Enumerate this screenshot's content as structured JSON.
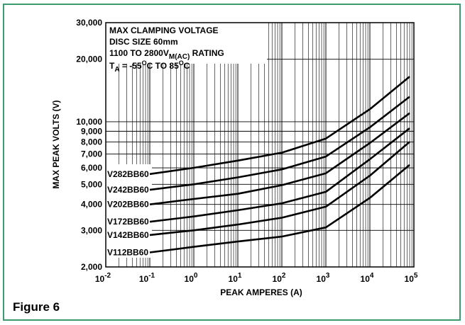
{
  "figure_caption": "Figure 6",
  "colors": {
    "border": "#3f9b6e",
    "line": "#000000",
    "grid": "#000000"
  },
  "chart_data": {
    "type": "line",
    "xscale": "log",
    "yscale": "log",
    "xlabel": "PEAK AMPERES (A)",
    "ylabel": "MAX PEAK VOLTS (V)",
    "xlim": [
      0.01,
      100000
    ],
    "ylim": [
      2000,
      30000
    ],
    "grid": true,
    "x_ticks": [
      {
        "value": 0.01,
        "base": "10",
        "exp": "-2"
      },
      {
        "value": 0.1,
        "base": "10",
        "exp": "-1"
      },
      {
        "value": 1,
        "base": "10",
        "exp": "0"
      },
      {
        "value": 10,
        "base": "10",
        "exp": "1"
      },
      {
        "value": 100,
        "base": "10",
        "exp": "2"
      },
      {
        "value": 1000,
        "base": "10",
        "exp": "3"
      },
      {
        "value": 10000,
        "base": "10",
        "exp": "4"
      },
      {
        "value": 100000,
        "base": "10",
        "exp": "5"
      }
    ],
    "y_ticks": [
      {
        "value": 2000,
        "label": "2,000"
      },
      {
        "value": 3000,
        "label": "3,000"
      },
      {
        "value": 4000,
        "label": "4,000"
      },
      {
        "value": 5000,
        "label": "5,000"
      },
      {
        "value": 6000,
        "label": "6,000"
      },
      {
        "value": 7000,
        "label": "7,000"
      },
      {
        "value": 8000,
        "label": "8,000"
      },
      {
        "value": 9000,
        "label": "9,000"
      },
      {
        "value": 10000,
        "label": "10,000"
      },
      {
        "value": 20000,
        "label": "20,000"
      },
      {
        "value": 30000,
        "label": "30,000"
      }
    ],
    "annotation": {
      "line1": "MAX CLAMPING VOLTAGE",
      "line2": "DISC SIZE 60mm",
      "line3_main": "1100 TO 2800V",
      "line3_sub": "M(AC)",
      "line3_end": " RATING",
      "line4_t": "T",
      "line4_sub": "A",
      "line4_a": " = -55",
      "line4_sup1": "O",
      "line4_b": "C TO 85",
      "line4_sup2": "O",
      "line4_c": "C"
    },
    "series": [
      {
        "name": "V282BB60",
        "x": [
          0.1,
          1,
          10,
          100,
          1000,
          10000,
          80000
        ],
        "y": [
          5600,
          6000,
          6500,
          7100,
          8300,
          11500,
          16500
        ]
      },
      {
        "name": "V242BB60",
        "x": [
          0.1,
          1,
          10,
          100,
          1000,
          10000,
          80000
        ],
        "y": [
          4700,
          5000,
          5400,
          5900,
          6800,
          9400,
          13200
        ]
      },
      {
        "name": "V202BB60",
        "x": [
          0.1,
          1,
          10,
          100,
          1000,
          10000,
          80000
        ],
        "y": [
          4000,
          4250,
          4500,
          4950,
          5650,
          7900,
          11000
        ]
      },
      {
        "name": "V172BB60",
        "x": [
          0.1,
          1,
          10,
          100,
          1000,
          10000,
          80000
        ],
        "y": [
          3300,
          3500,
          3750,
          4050,
          4600,
          6600,
          9300
        ]
      },
      {
        "name": "V142BB60",
        "x": [
          0.1,
          1,
          10,
          100,
          1000,
          10000,
          80000
        ],
        "y": [
          2850,
          3000,
          3200,
          3450,
          3900,
          5500,
          8000
        ]
      },
      {
        "name": "V112BB60",
        "x": [
          0.1,
          1,
          10,
          100,
          1000,
          10000,
          80000
        ],
        "y": [
          2350,
          2500,
          2650,
          2800,
          3100,
          4300,
          6200
        ]
      }
    ]
  }
}
